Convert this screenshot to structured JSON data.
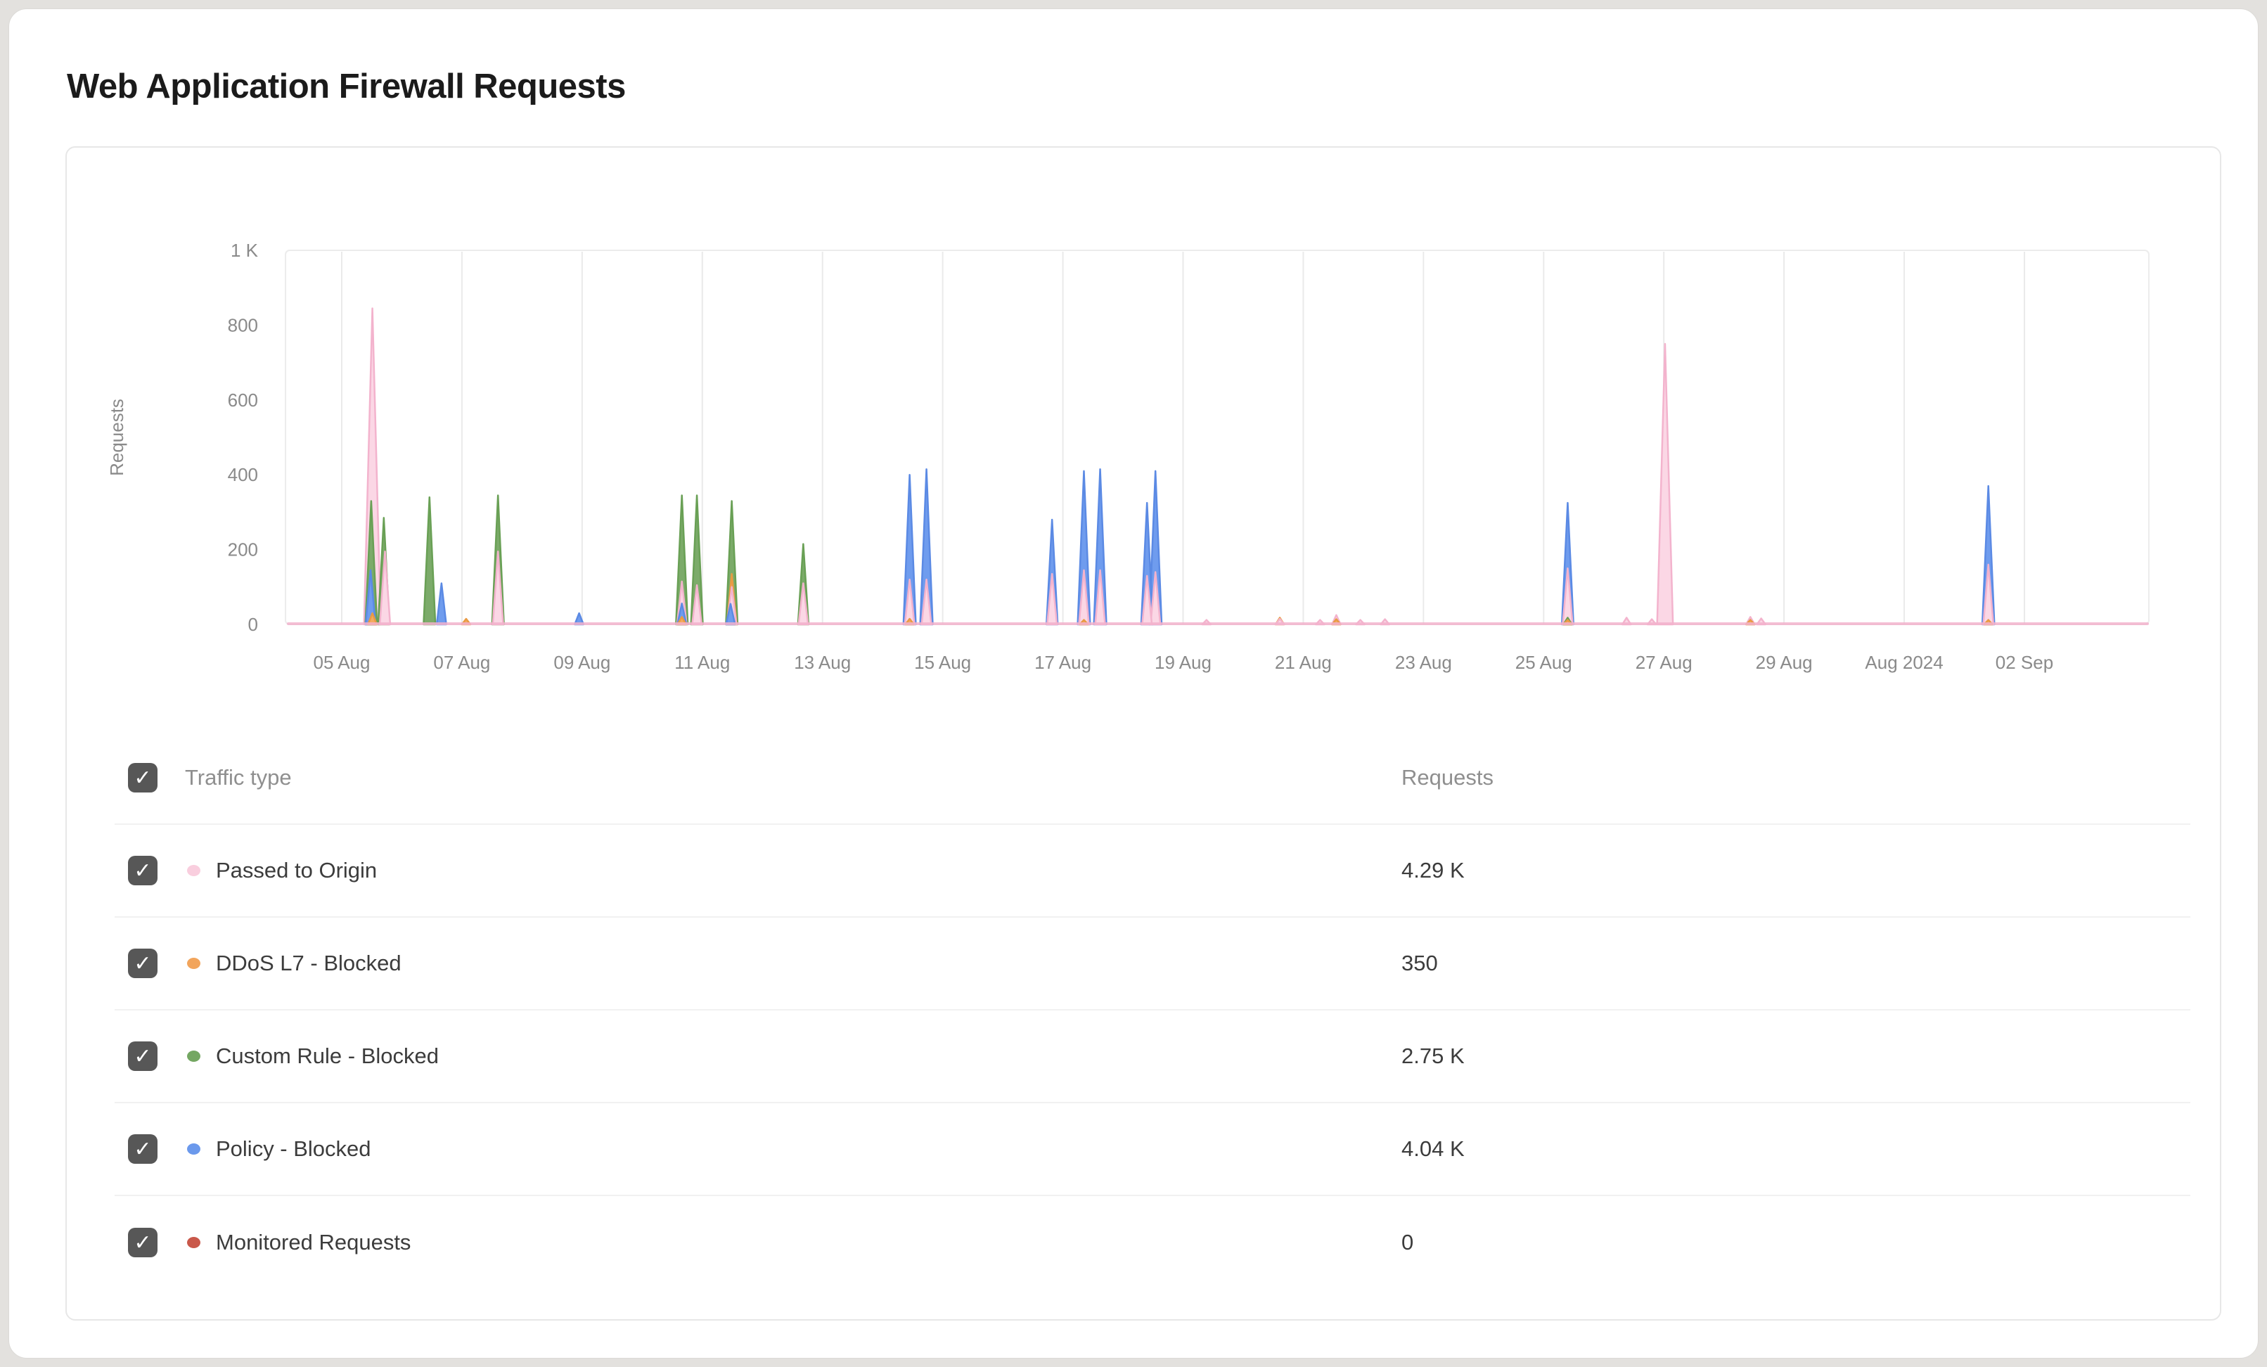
{
  "window": {
    "title": "Web Application Firewall Requests"
  },
  "chart_data": {
    "type": "area",
    "title": "Web Application Firewall Requests",
    "xlabel": "",
    "ylabel": "Requests",
    "ylim": [
      0,
      1000
    ],
    "grid": "vertical-only",
    "y_ticks": [
      {
        "label": "1 K",
        "value": 1000
      },
      {
        "label": "800",
        "value": 800
      },
      {
        "label": "600",
        "value": 600
      },
      {
        "label": "400",
        "value": 400
      },
      {
        "label": "200",
        "value": 200
      },
      {
        "label": "0",
        "value": 0
      }
    ],
    "x_unit": "days since 05 Aug 2024 (2-day tick spacing)",
    "x_ticks": [
      {
        "label": "05 Aug",
        "t": 0
      },
      {
        "label": "07 Aug",
        "t": 2
      },
      {
        "label": "09 Aug",
        "t": 4
      },
      {
        "label": "11 Aug",
        "t": 6
      },
      {
        "label": "13 Aug",
        "t": 8
      },
      {
        "label": "15 Aug",
        "t": 10
      },
      {
        "label": "17 Aug",
        "t": 12
      },
      {
        "label": "19 Aug",
        "t": 14
      },
      {
        "label": "21 Aug",
        "t": 16
      },
      {
        "label": "23 Aug",
        "t": 18
      },
      {
        "label": "25 Aug",
        "t": 20
      },
      {
        "label": "27 Aug",
        "t": 22
      },
      {
        "label": "29 Aug",
        "t": 24
      },
      {
        "label": "Aug 2024",
        "t": 26
      },
      {
        "label": "02 Sep",
        "t": 28
      }
    ],
    "series": [
      {
        "name": "Passed to Origin",
        "total": "4.29 K",
        "stroke": "#f3b3cd",
        "fill": "#fbd7e5",
        "baseline": true,
        "points": [
          {
            "t": 0.51,
            "v": 845
          },
          {
            "t": 0.72,
            "v": 195
          },
          {
            "t": 2.6,
            "v": 195
          },
          {
            "t": 5.66,
            "v": 115
          },
          {
            "t": 5.91,
            "v": 105
          },
          {
            "t": 6.49,
            "v": 100
          },
          {
            "t": 7.68,
            "v": 110
          },
          {
            "t": 9.45,
            "v": 120
          },
          {
            "t": 9.73,
            "v": 120
          },
          {
            "t": 11.82,
            "v": 135
          },
          {
            "t": 12.35,
            "v": 145
          },
          {
            "t": 12.62,
            "v": 145
          },
          {
            "t": 13.4,
            "v": 130
          },
          {
            "t": 13.54,
            "v": 140
          },
          {
            "t": 14.39,
            "v": 12
          },
          {
            "t": 15.61,
            "v": 15
          },
          {
            "t": 16.28,
            "v": 12
          },
          {
            "t": 16.55,
            "v": 25
          },
          {
            "t": 16.95,
            "v": 12
          },
          {
            "t": 17.36,
            "v": 14
          },
          {
            "t": 20.4,
            "v": 150
          },
          {
            "t": 21.38,
            "v": 18
          },
          {
            "t": 21.8,
            "v": 14
          },
          {
            "t": 22.02,
            "v": 750
          },
          {
            "t": 23.44,
            "v": 20
          },
          {
            "t": 23.62,
            "v": 16
          },
          {
            "t": 27.4,
            "v": 160
          }
        ]
      },
      {
        "name": "DDoS L7 - Blocked",
        "total": "350",
        "stroke": "#e99a43",
        "fill": "#f4aa60",
        "baseline": false,
        "points": [
          {
            "t": 0.51,
            "v": 30
          },
          {
            "t": 2.07,
            "v": 15
          },
          {
            "t": 5.66,
            "v": 20
          },
          {
            "t": 6.49,
            "v": 135
          },
          {
            "t": 9.45,
            "v": 15
          },
          {
            "t": 12.35,
            "v": 12
          },
          {
            "t": 15.61,
            "v": 18
          },
          {
            "t": 16.55,
            "v": 14
          },
          {
            "t": 20.4,
            "v": 12
          },
          {
            "t": 23.44,
            "v": 12
          },
          {
            "t": 27.4,
            "v": 12
          }
        ]
      },
      {
        "name": "Custom Rule - Blocked",
        "total": "2.75 K",
        "stroke": "#69a055",
        "fill": "#7cab6a",
        "baseline": false,
        "points": [
          {
            "t": 0.49,
            "v": 330
          },
          {
            "t": 0.7,
            "v": 285
          },
          {
            "t": 1.46,
            "v": 340
          },
          {
            "t": 2.6,
            "v": 345
          },
          {
            "t": 5.66,
            "v": 345
          },
          {
            "t": 5.91,
            "v": 345
          },
          {
            "t": 6.49,
            "v": 330
          },
          {
            "t": 7.68,
            "v": 215
          },
          {
            "t": 20.4,
            "v": 18
          }
        ]
      },
      {
        "name": "Policy - Blocked",
        "total": "4.04 K",
        "stroke": "#5b8ae4",
        "fill": "#6f9cee",
        "baseline": false,
        "points": [
          {
            "t": 0.48,
            "v": 145
          },
          {
            "t": 1.66,
            "v": 110
          },
          {
            "t": 3.95,
            "v": 30
          },
          {
            "t": 5.66,
            "v": 56
          },
          {
            "t": 6.47,
            "v": 55
          },
          {
            "t": 9.45,
            "v": 400
          },
          {
            "t": 9.73,
            "v": 415
          },
          {
            "t": 11.82,
            "v": 280
          },
          {
            "t": 12.35,
            "v": 410
          },
          {
            "t": 12.62,
            "v": 415
          },
          {
            "t": 13.4,
            "v": 325
          },
          {
            "t": 13.54,
            "v": 410
          },
          {
            "t": 20.4,
            "v": 325
          },
          {
            "t": 27.4,
            "v": 370
          }
        ]
      },
      {
        "name": "Monitored Requests",
        "total": "0",
        "stroke": "#c14a38",
        "fill": "#cb5a49",
        "baseline": false,
        "points": []
      }
    ]
  },
  "legend_table": {
    "header": {
      "traffic_type": "Traffic type",
      "requests": "Requests"
    },
    "rows": [
      {
        "label": "Passed to Origin",
        "value": "4.29 K",
        "dot_color": "#f9cede",
        "checked": true
      },
      {
        "label": "DDoS L7 - Blocked",
        "value": "350",
        "dot_color": "#f2a55c",
        "checked": true
      },
      {
        "label": "Custom Rule - Blocked",
        "value": "2.75 K",
        "dot_color": "#74a762",
        "checked": true
      },
      {
        "label": "Policy - Blocked",
        "value": "4.04 K",
        "dot_color": "#6b99ec",
        "checked": true
      },
      {
        "label": "Monitored Requests",
        "value": "0",
        "dot_color": "#c9584a",
        "checked": true
      }
    ],
    "checkmark": "✓"
  }
}
